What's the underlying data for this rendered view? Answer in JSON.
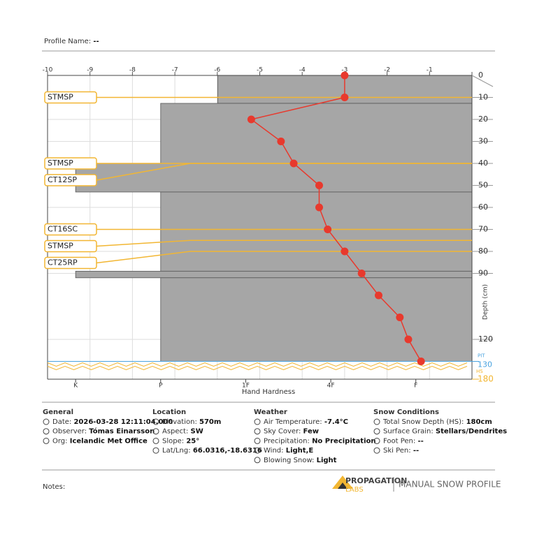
{
  "header": {
    "profile_name_label": "Profile Name:",
    "profile_name": "--"
  },
  "chart_data": {
    "type": "snow_profile",
    "xlim": [
      -10,
      0
    ],
    "xticks": [
      -10,
      -9,
      -8,
      -7,
      -6,
      -5,
      -4,
      -3,
      -2,
      -1,
      0
    ],
    "y_label": "Depth (cm)",
    "ylim": [
      0,
      130
    ],
    "yticks": [
      0,
      10,
      20,
      30,
      40,
      50,
      60,
      70,
      80,
      90,
      120
    ],
    "pit_depth": 130,
    "pit_label": "PIT",
    "hs": 180,
    "hs_label": "HS",
    "hardness_label": "Hand Hardness",
    "hardness_lim": [
      5.33,
      0.34
    ],
    "hardness_ticks": [
      {
        "value": 5,
        "label": "K"
      },
      {
        "value": 4,
        "label": "P"
      },
      {
        "value": 3,
        "label": "1F"
      },
      {
        "value": 2,
        "label": "4F"
      },
      {
        "value": 1,
        "label": "F"
      }
    ],
    "layer_color": "#a6a6a6",
    "layers": [
      {
        "top": 0,
        "bottom": 12.7,
        "hardness": 3.33
      },
      {
        "top": 12.7,
        "bottom": 40,
        "hardness": 4
      },
      {
        "top": 40,
        "bottom": 53,
        "hardness": 5
      },
      {
        "top": 53,
        "bottom": 89,
        "hardness": 4
      },
      {
        "top": 89,
        "bottom": 92,
        "hardness": 5
      },
      {
        "top": 92,
        "bottom": 130,
        "hardness": 4
      }
    ],
    "temperature": {
      "color": "#e8392d",
      "depths": [
        0,
        10,
        20,
        30,
        40,
        50,
        60,
        70,
        80,
        90,
        100,
        110,
        120,
        130
      ],
      "values": [
        -3,
        -3,
        -5.2,
        -4.5,
        -4.2,
        -3.6,
        -3.6,
        -3.4,
        -3,
        -2.6,
        -2.2,
        -1.7,
        -1.5,
        -1.2
      ]
    },
    "test_color": "#f2b632",
    "tests": [
      {
        "label": "STMSP",
        "depth": 10
      },
      {
        "label": "STMSP",
        "depth": 40
      },
      {
        "label": "CT12SP",
        "depth": 40
      },
      {
        "label": "CT16SC",
        "depth": 70
      },
      {
        "label": "STMSP",
        "depth": 75
      },
      {
        "label": "CT25RP",
        "depth": 80
      }
    ]
  },
  "sections": [
    {
      "title": "General",
      "items": [
        {
          "label": "Date:",
          "value": "2026-03-28 12:11:04.000"
        },
        {
          "label": "Observer:",
          "value": "Tómas Einarsson"
        },
        {
          "label": "Org:",
          "value": "Icelandic Met Office"
        }
      ]
    },
    {
      "title": "Location",
      "items": [
        {
          "label": "Elevation:",
          "value": "570m"
        },
        {
          "label": "Aspect:",
          "value": "SW"
        },
        {
          "label": "Slope:",
          "value": "25°"
        },
        {
          "label": "Lat/Lng:",
          "value": "66.0316,-18.6316"
        }
      ]
    },
    {
      "title": "Weather",
      "items": [
        {
          "label": "Air Temperature:",
          "value": "-7.4°C"
        },
        {
          "label": "Sky Cover:",
          "value": "Few"
        },
        {
          "label": "Precipitation:",
          "value": "No Precipitation"
        },
        {
          "label": "Wind:",
          "value": "Light,E"
        },
        {
          "label": "Blowing Snow:",
          "value": "Light"
        }
      ]
    },
    {
      "title": "Snow Conditions",
      "items": [
        {
          "label": "Total Snow Depth (HS):",
          "value": "180cm"
        },
        {
          "label": "Surface Grain:",
          "value": "Stellars/Dendrites"
        },
        {
          "label": "Foot Pen:",
          "value": "--"
        },
        {
          "label": "Ski Pen:",
          "value": "--"
        }
      ]
    }
  ],
  "footer": {
    "notes_label": "Notes:",
    "logo_top": "PROPAGATION",
    "logo_bottom": "LABS",
    "product": "MANUAL SNOW PROFILE"
  }
}
